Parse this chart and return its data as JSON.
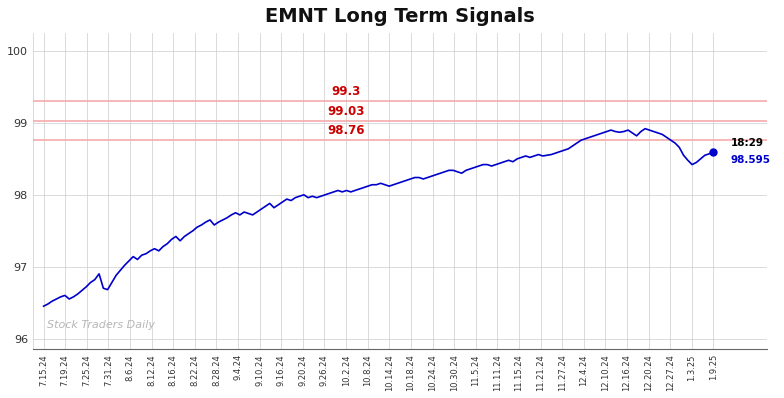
{
  "title": "EMNT Long Term Signals",
  "title_fontsize": 14,
  "line_color": "#0000cc",
  "background_color": "#ffffff",
  "watermark": "Stock Traders Daily",
  "watermark_color": "#aaaaaa",
  "ylabel_values": [
    96,
    97,
    98,
    99,
    100
  ],
  "ylim": [
    95.85,
    100.25
  ],
  "hlines": [
    99.3,
    99.03,
    98.76
  ],
  "hline_color": "#f5aaaa",
  "hline_labels": [
    "99.3",
    "99.03",
    "98.76"
  ],
  "hline_label_color": "#cc0000",
  "last_label": "18:29",
  "last_value": "98.595",
  "last_label_color_time": "#000000",
  "last_label_color_val": "#0000cc",
  "xtick_labels": [
    "7.15.24",
    "7.19.24",
    "7.25.24",
    "7.31.24",
    "8.6.24",
    "8.12.24",
    "8.16.24",
    "8.22.24",
    "8.28.24",
    "9.4.24",
    "9.10.24",
    "9.16.24",
    "9.20.24",
    "9.26.24",
    "10.2.24",
    "10.8.24",
    "10.14.24",
    "10.18.24",
    "10.24.24",
    "10.30.24",
    "11.5.24",
    "11.11.24",
    "11.15.24",
    "11.21.24",
    "11.27.24",
    "12.4.24",
    "12.10.24",
    "12.16.24",
    "12.20.24",
    "12.27.24",
    "1.3.25",
    "1.9.25"
  ],
  "series": [
    96.45,
    96.48,
    96.52,
    96.55,
    96.58,
    96.6,
    96.55,
    96.58,
    96.62,
    96.67,
    96.72,
    96.78,
    96.82,
    96.9,
    96.7,
    96.68,
    96.78,
    96.88,
    96.95,
    97.02,
    97.08,
    97.14,
    97.1,
    97.16,
    97.18,
    97.22,
    97.25,
    97.22,
    97.28,
    97.32,
    97.38,
    97.42,
    97.36,
    97.42,
    97.46,
    97.5,
    97.55,
    97.58,
    97.62,
    97.65,
    97.58,
    97.62,
    97.65,
    97.68,
    97.72,
    97.75,
    97.72,
    97.76,
    97.74,
    97.72,
    97.76,
    97.8,
    97.84,
    97.88,
    97.82,
    97.86,
    97.9,
    97.94,
    97.92,
    97.96,
    97.98,
    98.0,
    97.96,
    97.98,
    97.96,
    97.98,
    98.0,
    98.02,
    98.04,
    98.06,
    98.04,
    98.06,
    98.04,
    98.06,
    98.08,
    98.1,
    98.12,
    98.14,
    98.14,
    98.16,
    98.14,
    98.12,
    98.14,
    98.16,
    98.18,
    98.2,
    98.22,
    98.24,
    98.24,
    98.22,
    98.24,
    98.26,
    98.28,
    98.3,
    98.32,
    98.34,
    98.34,
    98.32,
    98.3,
    98.34,
    98.36,
    98.38,
    98.4,
    98.42,
    98.42,
    98.4,
    98.42,
    98.44,
    98.46,
    98.48,
    98.46,
    98.5,
    98.52,
    98.54,
    98.52,
    98.54,
    98.56,
    98.54,
    98.55,
    98.56,
    98.58,
    98.6,
    98.62,
    98.64,
    98.68,
    98.72,
    98.76,
    98.78,
    98.8,
    98.82,
    98.84,
    98.86,
    98.88,
    98.9,
    98.88,
    98.87,
    98.88,
    98.9,
    98.86,
    98.82,
    98.88,
    98.92,
    98.9,
    98.88,
    98.86,
    98.84,
    98.8,
    98.76,
    98.72,
    98.66,
    98.55,
    98.48,
    98.42,
    98.45,
    98.5,
    98.55,
    98.57,
    98.595
  ]
}
